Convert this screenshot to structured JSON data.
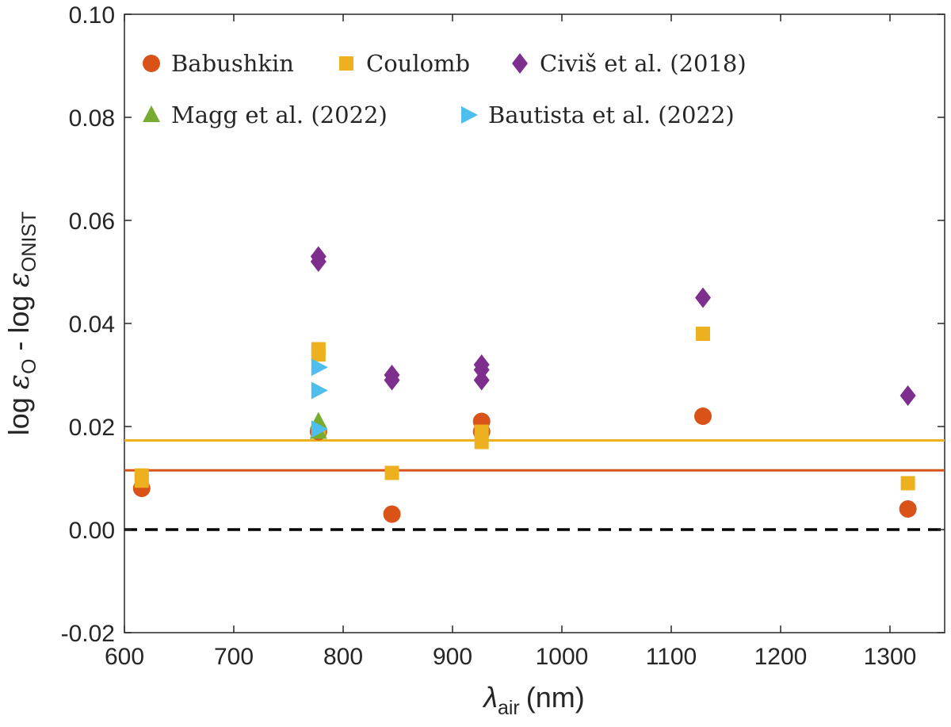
{
  "chart_data": {
    "type": "scatter",
    "xlabel": "λ",
    "xlabel_sub": "air",
    "xlabel_unit": "(nm)",
    "ylabel_parts": {
      "prefix": "log ",
      "eps1": "ε",
      "sub1": "O",
      "mid": " - log ",
      "eps2": "ε",
      "sub2": "ONIST"
    },
    "xlim": [
      600,
      1350
    ],
    "ylim": [
      -0.02,
      0.1
    ],
    "x_ticks": [
      600,
      700,
      800,
      900,
      1000,
      1100,
      1200,
      1300
    ],
    "x_tick_labels": [
      "600",
      "700",
      "800",
      "900",
      "1000",
      "1100",
      "1200",
      "1300"
    ],
    "y_ticks": [
      -0.02,
      0.0,
      0.02,
      0.04,
      0.06,
      0.08,
      0.1
    ],
    "y_tick_labels": [
      "-0.02",
      "0.00",
      "0.02",
      "0.04",
      "0.06",
      "0.08",
      "0.10"
    ],
    "grid": false,
    "legend_position": "top-left",
    "series": [
      {
        "name": "Babushkin",
        "marker": "circle",
        "color": "#D95319",
        "points": [
          [
            615.8,
            0.008
          ],
          [
            777.4,
            0.019
          ],
          [
            844.6,
            0.003
          ],
          [
            926.6,
            0.021
          ],
          [
            926.6,
            0.019
          ],
          [
            1129.0,
            0.022
          ],
          [
            1316.4,
            0.004
          ]
        ]
      },
      {
        "name": "Coulomb",
        "marker": "square",
        "color": "#EDB120",
        "points": [
          [
            615.8,
            0.0105
          ],
          [
            615.8,
            0.0095
          ],
          [
            777.4,
            0.035
          ],
          [
            777.4,
            0.034
          ],
          [
            777.4,
            0.019
          ],
          [
            844.6,
            0.011
          ],
          [
            926.6,
            0.019
          ],
          [
            926.6,
            0.017
          ],
          [
            1129.0,
            0.038
          ],
          [
            1316.4,
            0.009
          ]
        ]
      },
      {
        "name": "Civiš et al. (2018)",
        "marker": "diamond",
        "color": "#7E2F8E",
        "points": [
          [
            777.4,
            0.053
          ],
          [
            777.4,
            0.052
          ],
          [
            844.6,
            0.03
          ],
          [
            844.6,
            0.029
          ],
          [
            926.6,
            0.032
          ],
          [
            926.6,
            0.031
          ],
          [
            926.6,
            0.029
          ],
          [
            1129.0,
            0.045
          ],
          [
            1316.4,
            0.026
          ]
        ]
      },
      {
        "name": "Magg et al. (2022)",
        "marker": "triangle-up",
        "color": "#77AC30",
        "points": [
          [
            777.4,
            0.021
          ],
          [
            777.4,
            0.019
          ]
        ]
      },
      {
        "name": "Bautista et al. (2022)",
        "marker": "triangle-right",
        "color": "#4DBEEE",
        "points": [
          [
            777.4,
            0.0315
          ],
          [
            777.4,
            0.027
          ],
          [
            777.4,
            0.0195
          ]
        ]
      }
    ],
    "reference_lines": [
      {
        "name": "Coulomb mean",
        "y": 0.0173,
        "color": "#EDB120",
        "style": "solid"
      },
      {
        "name": "Babushkin mean",
        "y": 0.0115,
        "color": "#D95319",
        "style": "solid"
      },
      {
        "name": "zero",
        "y": 0.0,
        "color": "#000000",
        "style": "dashed"
      }
    ]
  }
}
